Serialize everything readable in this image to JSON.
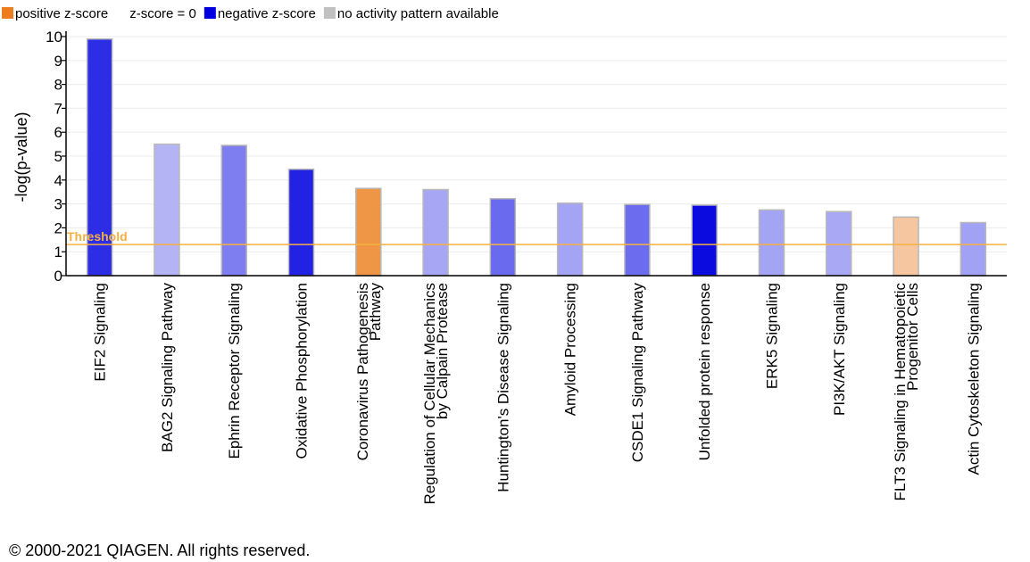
{
  "legend": [
    {
      "label": "positive z-score",
      "color": "#ee7d20"
    },
    {
      "label": "z-score = 0",
      "color": "#ffffff"
    },
    {
      "label": "negative z-score",
      "color": "#0000e1"
    },
    {
      "label": "no activity pattern available",
      "color": "#c0c0c0"
    }
  ],
  "copyright": "© 2000-2021 QIAGEN. All rights reserved.",
  "threshold_label": "Threshold",
  "chart_data": {
    "type": "bar",
    "ylabel": "-log(p-value)",
    "xlabel": "",
    "ylim": [
      0,
      10
    ],
    "yticks": [
      0,
      1,
      2,
      3,
      4,
      5,
      6,
      7,
      8,
      9,
      10
    ],
    "grid": "horizontal",
    "legend_position": "top-left",
    "threshold": 1.3,
    "threshold_color": "#f5b041",
    "categories": [
      [
        "EIF2 Signaling"
      ],
      [
        "BAG2 Signaling Pathway"
      ],
      [
        "Ephrin Receptor Signaling"
      ],
      [
        "Oxidative Phosphorylation"
      ],
      [
        "Coronavirus Pathogenesis",
        "Pathway"
      ],
      [
        "Regulation of Cellular Mechanics",
        "by Calpain Protease"
      ],
      [
        "Huntington's Disease Signaling"
      ],
      [
        "Amyloid Processing"
      ],
      [
        "CSDE1 Signaling Pathway"
      ],
      [
        "Unfolded protein response"
      ],
      [
        "ERK5 Signaling"
      ],
      [
        "PI3K/AKT Signaling"
      ],
      [
        "FLT3 Signaling in Hematopoietic",
        "Progenitor Cells"
      ],
      [
        "Actin Cytoskeleton Signaling"
      ]
    ],
    "values": [
      9.9,
      5.5,
      5.45,
      4.45,
      3.65,
      3.6,
      3.22,
      3.03,
      2.98,
      2.95,
      2.75,
      2.68,
      2.45,
      2.22
    ],
    "colors": [
      "#2d2de6",
      "#b4b4f5",
      "#7e7ef0",
      "#2222e4",
      "#ee9645",
      "#a6a6f5",
      "#6a6aee",
      "#a4a4f4",
      "#6c6cee",
      "#0b0be0",
      "#a4a4f4",
      "#a8a8f5",
      "#f5c6a0",
      "#a2a2f4"
    ]
  }
}
